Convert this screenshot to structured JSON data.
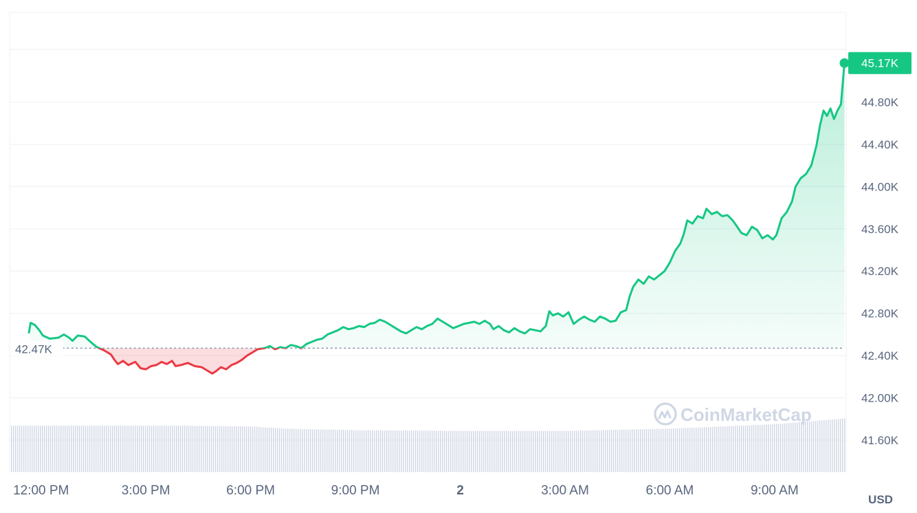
{
  "chart_data": {
    "type": "area",
    "unit": "USD",
    "watermark": "CoinMarketCap",
    "open_price_label": "42.47K",
    "current_price_label": "45.17K",
    "open_price": 42470,
    "current_price": 45170,
    "ylim": [
      41300,
      45650
    ],
    "y_ticks": [
      {
        "value": 44800,
        "label": "44.80K"
      },
      {
        "value": 44400,
        "label": "44.40K"
      },
      {
        "value": 44000,
        "label": "44.00K"
      },
      {
        "value": 43600,
        "label": "43.60K"
      },
      {
        "value": 43200,
        "label": "43.20K"
      },
      {
        "value": 42800,
        "label": "42.80K"
      },
      {
        "value": 42400,
        "label": "42.40K"
      },
      {
        "value": 42000,
        "label": "42.00K"
      },
      {
        "value": 41600,
        "label": "41.60K"
      }
    ],
    "x_unit": "hours since 12:00 PM",
    "xlim": [
      -0.9,
      23.05
    ],
    "x_ticks": [
      {
        "value": 0,
        "label": "12:00 PM",
        "bold": false
      },
      {
        "value": 3,
        "label": "3:00 PM",
        "bold": false
      },
      {
        "value": 6,
        "label": "6:00 PM",
        "bold": false
      },
      {
        "value": 9,
        "label": "9:00 PM",
        "bold": false
      },
      {
        "value": 12,
        "label": "2",
        "bold": true
      },
      {
        "value": 15,
        "label": "3:00 AM",
        "bold": false
      },
      {
        "value": 18,
        "label": "6:00 AM",
        "bold": false
      },
      {
        "value": 21,
        "label": "9:00 AM",
        "bold": false
      }
    ],
    "series": [
      {
        "values": [
          [
            -0.35,
            42610
          ],
          [
            -0.3,
            42710
          ],
          [
            -0.18,
            42690
          ],
          [
            -0.05,
            42640
          ],
          [
            0.05,
            42590
          ],
          [
            0.25,
            42560
          ],
          [
            0.5,
            42570
          ],
          [
            0.65,
            42600
          ],
          [
            0.8,
            42570
          ],
          [
            0.9,
            42540
          ],
          [
            1.05,
            42590
          ],
          [
            1.25,
            42580
          ],
          [
            1.45,
            42520
          ],
          [
            1.6,
            42480
          ],
          [
            1.8,
            42450
          ],
          [
            2.0,
            42410
          ],
          [
            2.1,
            42360
          ],
          [
            2.2,
            42320
          ],
          [
            2.35,
            42350
          ],
          [
            2.5,
            42310
          ],
          [
            2.7,
            42340
          ],
          [
            2.85,
            42280
          ],
          [
            3.0,
            42270
          ],
          [
            3.15,
            42300
          ],
          [
            3.3,
            42310
          ],
          [
            3.45,
            42340
          ],
          [
            3.6,
            42320
          ],
          [
            3.75,
            42350
          ],
          [
            3.85,
            42300
          ],
          [
            4.0,
            42310
          ],
          [
            4.2,
            42330
          ],
          [
            4.4,
            42300
          ],
          [
            4.6,
            42290
          ],
          [
            4.75,
            42260
          ],
          [
            4.9,
            42230
          ],
          [
            5.0,
            42250
          ],
          [
            5.15,
            42290
          ],
          [
            5.3,
            42270
          ],
          [
            5.45,
            42310
          ],
          [
            5.6,
            42330
          ],
          [
            5.75,
            42360
          ],
          [
            5.9,
            42400
          ],
          [
            6.05,
            42430
          ],
          [
            6.2,
            42460
          ],
          [
            6.4,
            42470
          ],
          [
            6.55,
            42490
          ],
          [
            6.7,
            42460
          ],
          [
            6.85,
            42480
          ],
          [
            7.0,
            42470
          ],
          [
            7.15,
            42500
          ],
          [
            7.3,
            42490
          ],
          [
            7.45,
            42470
          ],
          [
            7.6,
            42510
          ],
          [
            7.75,
            42530
          ],
          [
            7.9,
            42550
          ],
          [
            8.05,
            42560
          ],
          [
            8.2,
            42600
          ],
          [
            8.35,
            42620
          ],
          [
            8.5,
            42640
          ],
          [
            8.65,
            42670
          ],
          [
            8.8,
            42650
          ],
          [
            8.95,
            42660
          ],
          [
            9.1,
            42680
          ],
          [
            9.25,
            42670
          ],
          [
            9.4,
            42700
          ],
          [
            9.55,
            42710
          ],
          [
            9.7,
            42740
          ],
          [
            9.85,
            42720
          ],
          [
            10.0,
            42690
          ],
          [
            10.15,
            42660
          ],
          [
            10.3,
            42630
          ],
          [
            10.45,
            42610
          ],
          [
            10.6,
            42640
          ],
          [
            10.75,
            42670
          ],
          [
            10.9,
            42650
          ],
          [
            11.05,
            42680
          ],
          [
            11.2,
            42700
          ],
          [
            11.35,
            42750
          ],
          [
            11.5,
            42720
          ],
          [
            11.65,
            42690
          ],
          [
            11.8,
            42660
          ],
          [
            11.95,
            42680
          ],
          [
            12.1,
            42700
          ],
          [
            12.25,
            42710
          ],
          [
            12.4,
            42720
          ],
          [
            12.55,
            42700
          ],
          [
            12.7,
            42730
          ],
          [
            12.85,
            42700
          ],
          [
            12.95,
            42650
          ],
          [
            13.1,
            42680
          ],
          [
            13.25,
            42640
          ],
          [
            13.4,
            42620
          ],
          [
            13.55,
            42660
          ],
          [
            13.7,
            42630
          ],
          [
            13.85,
            42610
          ],
          [
            14.0,
            42650
          ],
          [
            14.15,
            42640
          ],
          [
            14.3,
            42630
          ],
          [
            14.45,
            42680
          ],
          [
            14.55,
            42820
          ],
          [
            14.65,
            42780
          ],
          [
            14.8,
            42800
          ],
          [
            14.95,
            42770
          ],
          [
            15.1,
            42810
          ],
          [
            15.25,
            42700
          ],
          [
            15.4,
            42740
          ],
          [
            15.55,
            42770
          ],
          [
            15.7,
            42740
          ],
          [
            15.85,
            42720
          ],
          [
            16.0,
            42770
          ],
          [
            16.15,
            42750
          ],
          [
            16.3,
            42720
          ],
          [
            16.45,
            42730
          ],
          [
            16.6,
            42810
          ],
          [
            16.75,
            42830
          ],
          [
            16.85,
            42960
          ],
          [
            16.95,
            43050
          ],
          [
            17.1,
            43120
          ],
          [
            17.25,
            43080
          ],
          [
            17.4,
            43150
          ],
          [
            17.55,
            43120
          ],
          [
            17.7,
            43160
          ],
          [
            17.85,
            43200
          ],
          [
            18.0,
            43280
          ],
          [
            18.15,
            43390
          ],
          [
            18.3,
            43460
          ],
          [
            18.4,
            43550
          ],
          [
            18.5,
            43680
          ],
          [
            18.65,
            43650
          ],
          [
            18.8,
            43720
          ],
          [
            18.95,
            43700
          ],
          [
            19.05,
            43790
          ],
          [
            19.2,
            43740
          ],
          [
            19.35,
            43760
          ],
          [
            19.5,
            43720
          ],
          [
            19.65,
            43730
          ],
          [
            19.8,
            43680
          ],
          [
            19.95,
            43610
          ],
          [
            20.05,
            43560
          ],
          [
            20.2,
            43540
          ],
          [
            20.35,
            43620
          ],
          [
            20.5,
            43590
          ],
          [
            20.65,
            43510
          ],
          [
            20.8,
            43540
          ],
          [
            20.95,
            43500
          ],
          [
            21.05,
            43540
          ],
          [
            21.2,
            43700
          ],
          [
            21.35,
            43760
          ],
          [
            21.5,
            43860
          ],
          [
            21.6,
            44000
          ],
          [
            21.75,
            44080
          ],
          [
            21.9,
            44120
          ],
          [
            22.05,
            44200
          ],
          [
            22.2,
            44390
          ],
          [
            22.3,
            44580
          ],
          [
            22.4,
            44720
          ],
          [
            22.5,
            44670
          ],
          [
            22.6,
            44740
          ],
          [
            22.7,
            44640
          ],
          [
            22.8,
            44720
          ],
          [
            22.9,
            44780
          ],
          [
            23.0,
            45170
          ]
        ]
      }
    ],
    "volume": [
      {
        "x": -0.9,
        "v": 0.62
      },
      {
        "x": 1.0,
        "v": 0.62
      },
      {
        "x": 4.0,
        "v": 0.62
      },
      {
        "x": 6.0,
        "v": 0.61
      },
      {
        "x": 7.0,
        "v": 0.58
      },
      {
        "x": 9.0,
        "v": 0.56
      },
      {
        "x": 12.0,
        "v": 0.55
      },
      {
        "x": 15.0,
        "v": 0.55
      },
      {
        "x": 18.0,
        "v": 0.58
      },
      {
        "x": 21.0,
        "v": 0.64
      },
      {
        "x": 23.05,
        "v": 0.72
      }
    ],
    "colors": {
      "up": "#16c784",
      "down": "#ea3943",
      "grid": "#eff2f5",
      "axis_text": "#58667e",
      "volume": "#cfd6e4",
      "reference_line": "#8a94a6"
    },
    "grid": true
  }
}
